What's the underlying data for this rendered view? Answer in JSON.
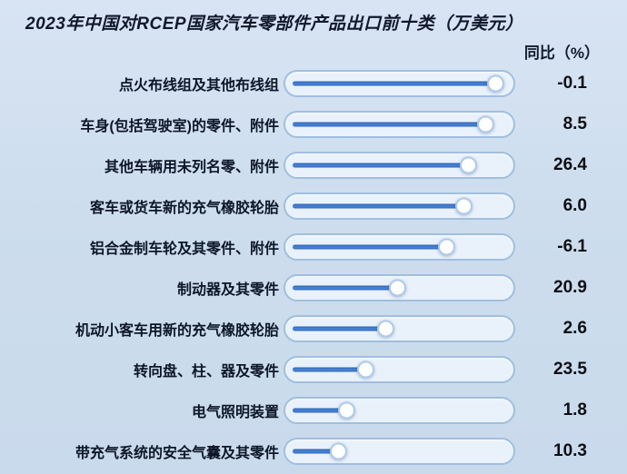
{
  "title": "2023年中国对RCEP国家汽车零部件产品出口前十类（万美元）",
  "value_header": "同比（%）",
  "accent_colors": {
    "background": "#cddded",
    "track_blue": "#3a77cd",
    "pill_border": "#9fbfdf",
    "pill_fill": "#e9f1fb",
    "text_dark": "#10182b"
  },
  "rows": [
    {
      "label": "点火布线组及其他布线组",
      "yoy": "-0.1",
      "slider_percent": 99
    },
    {
      "label": "车身(包括驾驶室)的零件、附件",
      "yoy": "8.5",
      "slider_percent": 94
    },
    {
      "label": "其他车辆用未列名零、附件",
      "yoy": "26.4",
      "slider_percent": 85
    },
    {
      "label": "客车或货车新的充气橡胶轮胎",
      "yoy": "6.0",
      "slider_percent": 83
    },
    {
      "label": "铝合金制车轮及其零件、附件",
      "yoy": "-6.1",
      "slider_percent": 74
    },
    {
      "label": "制动器及其零件",
      "yoy": "20.9",
      "slider_percent": 49
    },
    {
      "label": "机动小客车用新的充气橡胶轮胎",
      "yoy": "2.6",
      "slider_percent": 43
    },
    {
      "label": "转向盘、柱、器及零件",
      "yoy": "23.5",
      "slider_percent": 33
    },
    {
      "label": "电气照明装置",
      "yoy": "1.8",
      "slider_percent": 23
    },
    {
      "label": "带充气系统的安全气囊及其零件",
      "yoy": "10.3",
      "slider_percent": 19
    }
  ],
  "chart_data": {
    "type": "bar",
    "title": "2023年中国对RCEP国家汽车零部件产品出口前十类（万美元）",
    "categories": [
      "点火布线组及其他布线组",
      "车身(包括驾驶室)的零件、附件",
      "其他车辆用未列名零、附件",
      "客车或货车新的充气橡胶轮胎",
      "铝合金制车轮及其零件、附件",
      "制动器及其零件",
      "机动小客车用新的充气橡胶轮胎",
      "转向盘、柱、器及零件",
      "电气照明装置",
      "带充气系统的安全气囊及其零件"
    ],
    "series": [
      {
        "name": "同比（%）",
        "values": [
          -0.1,
          8.5,
          26.4,
          6.0,
          -6.1,
          20.9,
          2.6,
          23.5,
          1.8,
          10.3
        ]
      },
      {
        "name": "出口额滑块位置（占满刻度%，出口额未标注数值）",
        "values": [
          99,
          94,
          85,
          83,
          74,
          49,
          43,
          33,
          23,
          19
        ]
      }
    ],
    "xlabel": "",
    "ylabel": "同比（%）",
    "legend_position": "none",
    "grid": false,
    "orientation": "horizontal"
  }
}
